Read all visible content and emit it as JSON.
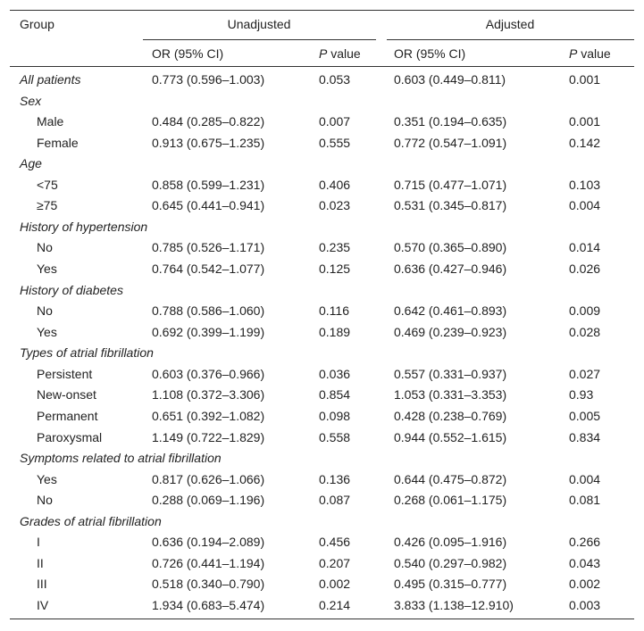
{
  "table": {
    "header": {
      "group": "Group",
      "unadjusted": "Unadjusted",
      "adjusted": "Adjusted",
      "columns": [
        "OR (95% CI)",
        "P value",
        "OR (95% CI)",
        "P value"
      ]
    },
    "rows": [
      {
        "label": "All patients",
        "cells": [
          "0.773 (0.596–1.003)",
          "0.053",
          "0.603 (0.449–0.811)",
          "0.001"
        ]
      },
      {
        "label": "Sex"
      },
      {
        "label": "Male",
        "cells": [
          "0.484 (0.285–0.822)",
          "0.007",
          "0.351 (0.194–0.635)",
          "0.001"
        ]
      },
      {
        "label": "Female",
        "cells": [
          "0.913 (0.675–1.235)",
          "0.555",
          "0.772 (0.547–1.091)",
          "0.142"
        ]
      },
      {
        "label": "Age"
      },
      {
        "label": "<75",
        "cells": [
          "0.858 (0.599–1.231)",
          "0.406",
          "0.715 (0.477–1.071)",
          "0.103"
        ]
      },
      {
        "label": "≥75",
        "cells": [
          "0.645 (0.441–0.941)",
          "0.023",
          "0.531 (0.345–0.817)",
          "0.004"
        ]
      },
      {
        "label": "History of hypertension"
      },
      {
        "label": "No",
        "cells": [
          "0.785 (0.526–1.171)",
          "0.235",
          "0.570 (0.365–0.890)",
          "0.014"
        ]
      },
      {
        "label": "Yes",
        "cells": [
          "0.764 (0.542–1.077)",
          "0.125",
          "0.636 (0.427–0.946)",
          "0.026"
        ]
      },
      {
        "label": "History of diabetes"
      },
      {
        "label": "No",
        "cells": [
          "0.788 (0.586–1.060)",
          "0.116",
          "0.642 (0.461–0.893)",
          "0.009"
        ]
      },
      {
        "label": "Yes",
        "cells": [
          "0.692 (0.399–1.199)",
          "0.189",
          "0.469 (0.239–0.923)",
          "0.028"
        ]
      },
      {
        "label": "Types of atrial fibrillation"
      },
      {
        "label": "Persistent",
        "cells": [
          "0.603 (0.376–0.966)",
          "0.036",
          "0.557 (0.331–0.937)",
          "0.027"
        ]
      },
      {
        "label": "New-onset",
        "cells": [
          "1.108 (0.372–3.306)",
          "0.854",
          "1.053 (0.331–3.353)",
          "0.93"
        ]
      },
      {
        "label": "Permanent",
        "cells": [
          "0.651 (0.392–1.082)",
          "0.098",
          "0.428 (0.238–0.769)",
          "0.005"
        ]
      },
      {
        "label": "Paroxysmal",
        "cells": [
          "1.149 (0.722–1.829)",
          "0.558",
          "0.944 (0.552–1.615)",
          "0.834"
        ]
      },
      {
        "label": "Symptoms related to atrial fibrillation"
      },
      {
        "label": "Yes",
        "cells": [
          "0.817 (0.626–1.066)",
          "0.136",
          "0.644 (0.475–0.872)",
          "0.004"
        ]
      },
      {
        "label": "No",
        "cells": [
          "0.288 (0.069–1.196)",
          "0.087",
          "0.268 (0.061–1.175)",
          "0.081"
        ]
      },
      {
        "label": "Grades of atrial fibrillation"
      },
      {
        "label": "I",
        "cells": [
          "0.636 (0.194–2.089)",
          "0.456",
          "0.426 (0.095–1.916)",
          "0.266"
        ]
      },
      {
        "label": "II",
        "cells": [
          "0.726 (0.441–1.194)",
          "0.207",
          "0.540 (0.297–0.982)",
          "0.043"
        ]
      },
      {
        "label": "III",
        "cells": [
          "0.518 (0.340–0.790)",
          "0.002",
          "0.495 (0.315–0.777)",
          "0.002"
        ]
      },
      {
        "label": "IV",
        "cells": [
          "1.934 (0.683–5.474)",
          "0.214",
          "3.833 (1.138–12.910)",
          "0.003"
        ]
      }
    ]
  }
}
